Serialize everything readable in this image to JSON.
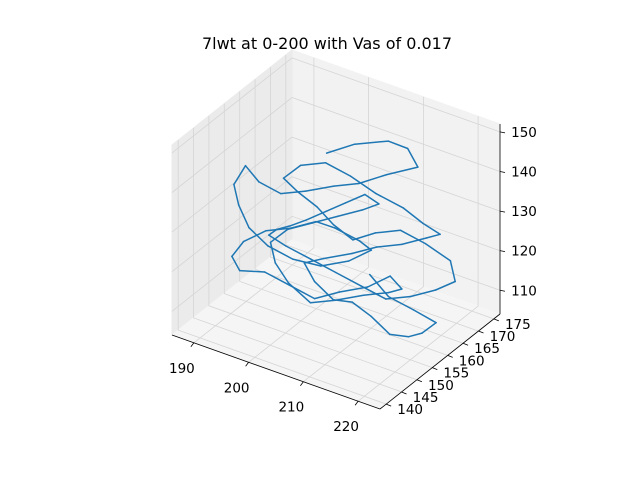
{
  "chart_data": {
    "type": "line3d",
    "title": "7lwt at 0-200 with Vas of 0.017",
    "xlabel": "",
    "ylabel": "",
    "zlabel": "",
    "grid": true,
    "x_ticks": [
      "190",
      "200",
      "210",
      "220"
    ],
    "y_ticks": [
      "140",
      "145",
      "150",
      "155",
      "160",
      "165",
      "170",
      "175"
    ],
    "z_ticks": [
      "110",
      "120",
      "130",
      "140",
      "150"
    ],
    "xlim": [
      186,
      224
    ],
    "ylim": [
      138,
      177
    ],
    "zlim": [
      104,
      152
    ],
    "series": [
      {
        "color": "#1f77b4",
        "points": [
          [
            203,
            158,
            146
          ],
          [
            207,
            160,
            149
          ],
          [
            212,
            162,
            151
          ],
          [
            215,
            163,
            150
          ],
          [
            218,
            161,
            148
          ],
          [
            214,
            158,
            146
          ],
          [
            210,
            156,
            143
          ],
          [
            206,
            155,
            141
          ],
          [
            202,
            153,
            139
          ],
          [
            198,
            152,
            137
          ],
          [
            194,
            152,
            138
          ],
          [
            191,
            153,
            140
          ],
          [
            190,
            151,
            136
          ],
          [
            192,
            149,
            133
          ],
          [
            195,
            147,
            130
          ],
          [
            199,
            146,
            128
          ],
          [
            203,
            147,
            126
          ],
          [
            207,
            149,
            125
          ],
          [
            211,
            151,
            127
          ],
          [
            214,
            153,
            130
          ],
          [
            213,
            151,
            133
          ],
          [
            209,
            150,
            135
          ],
          [
            205,
            151,
            134
          ],
          [
            201,
            150,
            131
          ],
          [
            197,
            149,
            129
          ],
          [
            194,
            147,
            126
          ],
          [
            193,
            145,
            123
          ],
          [
            195,
            144,
            121
          ],
          [
            199,
            145,
            122
          ],
          [
            203,
            146,
            120
          ],
          [
            207,
            147,
            118
          ],
          [
            211,
            148,
            121
          ],
          [
            215,
            150,
            123
          ],
          [
            218,
            152,
            126
          ],
          [
            219,
            154,
            122
          ],
          [
            216,
            155,
            119
          ],
          [
            212,
            154,
            117
          ],
          [
            208,
            152,
            115
          ],
          [
            204,
            151,
            113
          ],
          [
            200,
            151,
            116
          ],
          [
            197,
            152,
            119
          ],
          [
            195,
            154,
            122
          ],
          [
            197,
            156,
            125
          ],
          [
            201,
            157,
            128
          ],
          [
            205,
            158,
            131
          ],
          [
            209,
            159,
            134
          ],
          [
            212,
            159,
            137
          ],
          [
            210,
            158,
            139
          ],
          [
            207,
            157,
            136
          ],
          [
            204,
            156,
            133
          ],
          [
            201,
            155,
            130
          ],
          [
            198,
            155,
            127
          ],
          [
            195,
            156,
            124
          ],
          [
            193,
            157,
            121
          ],
          [
            195,
            159,
            118
          ],
          [
            199,
            160,
            116
          ],
          [
            203,
            161,
            114
          ],
          [
            207,
            162,
            112
          ],
          [
            211,
            163,
            110
          ],
          [
            215,
            164,
            112
          ],
          [
            219,
            165,
            115
          ],
          [
            222,
            166,
            118
          ],
          [
            220,
            168,
            121
          ],
          [
            216,
            167,
            124
          ],
          [
            212,
            166,
            126
          ],
          [
            208,
            165,
            124
          ],
          [
            205,
            163,
            122
          ],
          [
            202,
            162,
            125
          ],
          [
            199,
            162,
            128
          ],
          [
            196,
            161,
            131
          ],
          [
            194,
            160,
            134
          ],
          [
            196,
            162,
            137
          ],
          [
            200,
            163,
            139
          ],
          [
            204,
            164,
            137
          ],
          [
            208,
            165,
            134
          ],
          [
            212,
            167,
            131
          ],
          [
            215,
            168,
            128
          ],
          [
            217,
            170,
            125
          ],
          [
            214,
            171,
            122
          ],
          [
            210,
            170,
            119
          ],
          [
            206,
            169,
            117
          ],
          [
            202,
            168,
            114
          ],
          [
            198,
            166,
            112
          ],
          [
            195,
            165,
            110
          ],
          [
            198,
            163,
            108
          ],
          [
            202,
            162,
            106
          ],
          [
            206,
            161,
            108
          ],
          [
            210,
            160,
            107
          ],
          [
            214,
            159,
            105
          ],
          [
            218,
            158,
            107
          ],
          [
            221,
            157,
            110
          ],
          [
            223,
            158,
            113
          ],
          [
            220,
            156,
            116
          ],
          [
            216,
            155,
            118
          ],
          [
            212,
            156,
            121
          ]
        ]
      }
    ]
  }
}
